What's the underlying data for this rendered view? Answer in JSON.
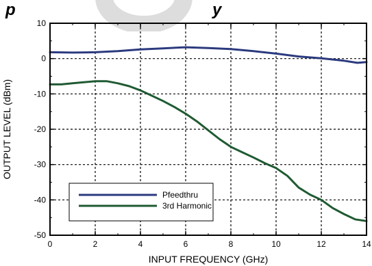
{
  "header_fragment": {
    "text": "p",
    "trailing_text": "y"
  },
  "chart_data": {
    "type": "line",
    "title": "",
    "xlabel": "INPUT FREQUENCY (GHz)",
    "ylabel": "OUTPUT LEVEL (dBm)",
    "xlim": [
      0,
      14
    ],
    "ylim": [
      -50,
      10
    ],
    "xticks": [
      "0",
      "2",
      "4",
      "6",
      "8",
      "10",
      "12",
      "14"
    ],
    "yticks": [
      "10",
      "0",
      "-10",
      "-20",
      "-30",
      "-40",
      "-50"
    ],
    "grid": true,
    "legend_position": "bottom-left",
    "series": [
      {
        "name": "Pfeedthru",
        "color": "#2b3a7e",
        "x": [
          0,
          1,
          2,
          3,
          4,
          5,
          6,
          7,
          8,
          9,
          10,
          11,
          12,
          13,
          13.6,
          14
        ],
        "y": [
          1.8,
          1.7,
          1.8,
          2.1,
          2.6,
          2.9,
          3.2,
          3.0,
          2.7,
          2.1,
          1.4,
          0.6,
          0.1,
          -0.6,
          -1.2,
          -1.0
        ]
      },
      {
        "name": "3rd Harmonic",
        "color": "#1f5a32",
        "x": [
          0,
          0.5,
          1,
          1.5,
          2,
          2.5,
          3,
          3.5,
          4,
          4.5,
          5,
          5.5,
          6,
          6.5,
          7,
          7.5,
          8,
          8.5,
          9,
          9.5,
          10,
          10.5,
          11,
          11.5,
          12,
          12.5,
          13,
          13.5,
          14
        ],
        "y": [
          -7.3,
          -7.3,
          -7.0,
          -6.7,
          -6.4,
          -6.4,
          -7.0,
          -7.8,
          -9.0,
          -10.5,
          -12.0,
          -13.7,
          -15.6,
          -17.8,
          -20.3,
          -22.8,
          -25.0,
          -26.5,
          -28.0,
          -29.6,
          -31.0,
          -33.2,
          -36.5,
          -38.5,
          -40.0,
          -42.3,
          -44.0,
          -45.5,
          -46.0
        ]
      }
    ]
  }
}
